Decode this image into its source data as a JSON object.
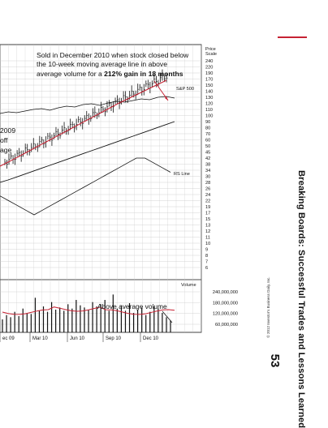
{
  "page": {
    "book_title": "Breaking Boards: Successful Trades and Lessons Learned",
    "page_number": "53",
    "copyright": "© 2012 Investor's Business Daily, Inc."
  },
  "annotations": {
    "main_prefix_1": "Sold in December 2010 when stock closed below",
    "main_prefix_2": "the 10-week moving average line in above",
    "main_prefix_3": "average volume for a ",
    "main_bold": "212% gain in 18 months",
    "left_1": "2009",
    "left_2": "off",
    "left_3": "age",
    "volume_note": "Above average volume",
    "sp500": "S&P 500",
    "rs_line": "RS Line"
  },
  "colors": {
    "accent": "#c62233",
    "grid": "#c9c9c9",
    "ink": "#111111"
  },
  "chart_data": {
    "type": "line",
    "price_axis_title": "Price Scale",
    "price_ticks": [
      "240",
      "220",
      "190",
      "170",
      "150",
      "140",
      "130",
      "120",
      "110",
      "100",
      "90",
      "80",
      "70",
      "60",
      "50",
      "45",
      "42",
      "38",
      "34",
      "30",
      "28",
      "26",
      "24",
      "22",
      "19",
      "17",
      "15",
      "13",
      "12",
      "11",
      "10",
      "9",
      "8",
      "7",
      "6"
    ],
    "volume_axis_title": "Volume",
    "volume_ticks": [
      "240,000,000",
      "180,000,000",
      "120,000,000",
      "60,000,000"
    ],
    "x_ticks": [
      "ec 09",
      "Mar 10",
      "Jun 10",
      "Sep 10",
      "Dec 10"
    ],
    "series": [
      {
        "name": "S&P 500",
        "values": [
          110,
          112,
          111,
          113,
          115,
          116,
          114,
          117,
          119,
          118,
          121,
          122,
          120,
          123,
          125,
          124,
          126,
          128,
          127,
          130,
          131,
          129
        ]
      },
      {
        "name": "RS Line",
        "values": [
          29,
          28,
          27,
          26,
          25,
          26,
          27,
          28,
          29,
          30,
          31,
          32,
          33,
          34,
          35,
          36,
          37,
          37,
          36,
          35,
          34
        ]
      }
    ],
    "volume_values": [
      60,
      80,
      70,
      95,
      75,
      110,
      90,
      85,
      160,
      100,
      120,
      95,
      140,
      105,
      115,
      100,
      130,
      110,
      150,
      125,
      115,
      105,
      140,
      120,
      130,
      150,
      100,
      175,
      110,
      125,
      100,
      135,
      90,
      105,
      115,
      80,
      95,
      120,
      110,
      90,
      70,
      55
    ],
    "grid": true
  }
}
